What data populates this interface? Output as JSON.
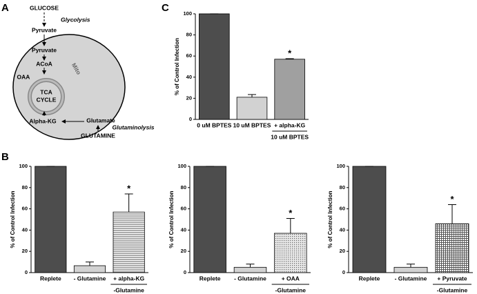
{
  "panel_labels": [
    "A",
    "B",
    "C"
  ],
  "diagram": {
    "glucose": "GLUCOSE",
    "glycolysis": "Glycolysis",
    "pyruvate_out": "Pyruvate",
    "pyruvate_in": "Pyruvate",
    "acoa": "ACoA",
    "oaa": "OAA",
    "mito": "Mito",
    "tca1": "TCA",
    "tca2": "CYCLE",
    "alpha_kg": "Alpha-KG",
    "glutamate": "Glutamate",
    "glutaminolysis": "Glutaminolysis",
    "glutamine": "GLUTAMINE"
  },
  "chart_data": [
    {
      "type": "bar",
      "ylabel": "% of Control Infection",
      "categories": [
        "0 uM BPTES",
        "10 uM BPTES",
        "+ alpha-KG"
      ],
      "values": [
        100,
        21,
        57
      ],
      "errors": [
        0,
        2.5,
        0.5
      ],
      "colors": [
        "#4d4d4d",
        "#d2d2d2",
        "#a0a0a0"
      ],
      "ylim": [
        0,
        100
      ],
      "yticks": [
        0,
        20,
        40,
        60,
        80,
        100
      ],
      "annotations": [
        {
          "text": "*",
          "category": 2
        }
      ],
      "group_label": {
        "text": "10 uM BPTES",
        "category": 2
      }
    },
    {
      "type": "bar",
      "ylabel": "% of Control Infection",
      "categories": [
        "Replete",
        "- Glutamine",
        "+ alpha-KG"
      ],
      "values": [
        100,
        6.5,
        57
      ],
      "errors": [
        0,
        3.5,
        17
      ],
      "colors": [
        "#4d4d4d",
        "#d2d2d2",
        "hlines"
      ],
      "ylim": [
        0,
        100
      ],
      "yticks": [
        0,
        20,
        40,
        60,
        80,
        100
      ],
      "annotations": [
        {
          "text": "*",
          "category": 2
        }
      ],
      "group_label": {
        "text": "-Glutamine",
        "category": 2
      }
    },
    {
      "type": "bar",
      "ylabel": "% of Control Infection",
      "categories": [
        "Replete",
        "- Glutamine",
        "+ OAA"
      ],
      "values": [
        100,
        5,
        37
      ],
      "errors": [
        0,
        3,
        14
      ],
      "colors": [
        "#4d4d4d",
        "#d2d2d2",
        "dots"
      ],
      "ylim": [
        0,
        100
      ],
      "yticks": [
        0,
        20,
        40,
        60,
        80,
        100
      ],
      "annotations": [
        {
          "text": "*",
          "category": 2
        }
      ],
      "group_label": {
        "text": "-Glutamine",
        "category": 2
      }
    },
    {
      "type": "bar",
      "ylabel": "% of Control Infection",
      "categories": [
        "Replete",
        "- Glutamine",
        "+ Pyruvate"
      ],
      "values": [
        100,
        5,
        46
      ],
      "errors": [
        0,
        3,
        18
      ],
      "colors": [
        "#4d4d4d",
        "#d2d2d2",
        "grid"
      ],
      "ylim": [
        0,
        100
      ],
      "yticks": [
        0,
        20,
        40,
        60,
        80,
        100
      ],
      "annotations": [
        {
          "text": "*",
          "category": 2
        }
      ],
      "group_label": {
        "text": "-Glutamine",
        "category": 2
      }
    }
  ]
}
